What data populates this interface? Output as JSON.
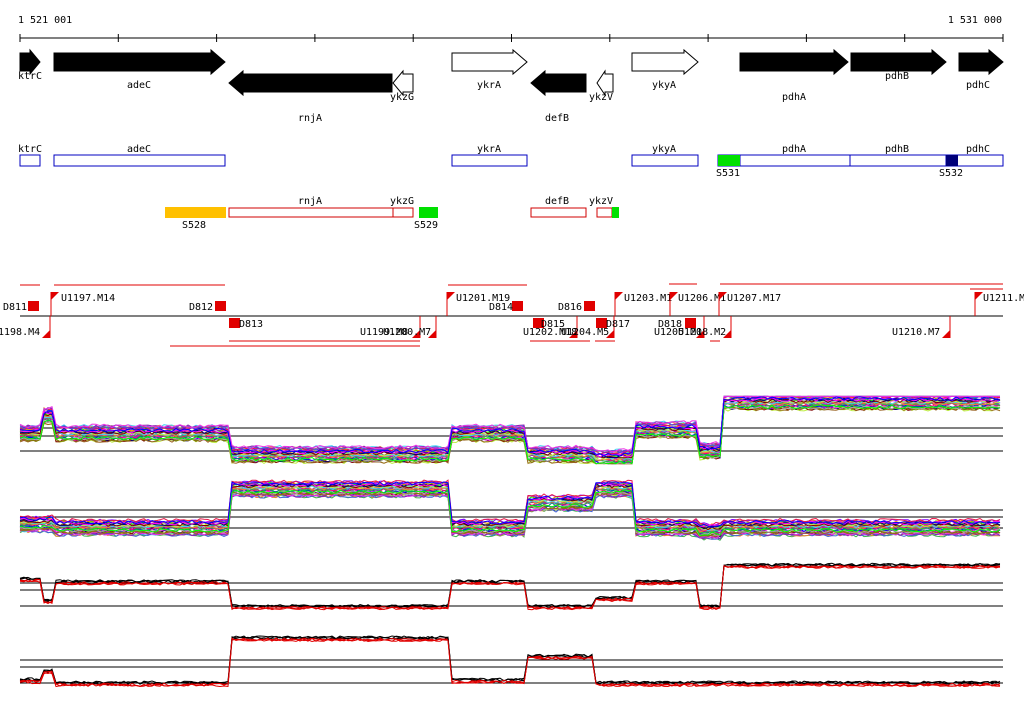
{
  "ruler": {
    "start_label": "1 521 001",
    "end_label": "1 531 000"
  },
  "gene_track": [
    {
      "name": "ktrC",
      "strand": "+",
      "filled": true
    },
    {
      "name": "adeC",
      "strand": "+",
      "filled": true
    },
    {
      "name": "rnjA",
      "strand": "-",
      "filled": true
    },
    {
      "name": "ykzG",
      "strand": "-",
      "filled": false
    },
    {
      "name": "ykrA",
      "strand": "+",
      "filled": false
    },
    {
      "name": "defB",
      "strand": "-",
      "filled": true
    },
    {
      "name": "ykzV",
      "strand": "-",
      "filled": false
    },
    {
      "name": "ykyA",
      "strand": "+",
      "filled": false
    },
    {
      "name": "pdhA",
      "strand": "+",
      "filled": true
    },
    {
      "name": "pdhB",
      "strand": "+",
      "filled": true
    },
    {
      "name": "pdhC",
      "strand": "+",
      "filled": true
    }
  ],
  "plus_operons": {
    "boxes": [
      "ktrC",
      "adeC",
      "ykrA",
      "ykyA",
      "pdhA",
      "pdhB",
      "pdhC"
    ],
    "sigma_sites": [
      {
        "label": "S531",
        "color": "#00e000"
      },
      {
        "label": "S532",
        "color": "#00007a"
      }
    ]
  },
  "minus_operons": {
    "boxes": [
      "rnjA",
      "ykzG",
      "defB",
      "ykzV"
    ],
    "sigma_sites": [
      {
        "label": "S528",
        "color": "#ffc000"
      },
      {
        "label": "S529",
        "color": "#00e000"
      }
    ]
  },
  "segments_top": [
    "D811",
    "U1197.M14",
    "D812",
    "U1201.M19",
    "D814",
    "D816",
    "U1203.M1",
    "U1206.M1",
    "U1207.M17",
    "U1211.M"
  ],
  "segments_bottom": [
    "1198.M4",
    "D813",
    "U1199.M8",
    "U1200.M7",
    "D815",
    "U1202.M18",
    "U1204.M5",
    "D817",
    "D818",
    "U1205.M1",
    "U1208.M2",
    "U1210.M7"
  ],
  "profile_colors": {
    "multi": [
      "#e6194b",
      "#3cb44b",
      "#4363d8",
      "#f58231",
      "#911eb4",
      "#42d4f4",
      "#f032e6",
      "#bfef45",
      "#9a6324",
      "#800000",
      "#808000",
      "#000075",
      "#a9a9a9",
      "#ff00ff",
      "#00ff00",
      "#0000ff",
      "#ff8000",
      "#008080",
      "#7f00ff",
      "#ff0080"
    ],
    "pair": [
      "#000000",
      "#e00000"
    ]
  }
}
